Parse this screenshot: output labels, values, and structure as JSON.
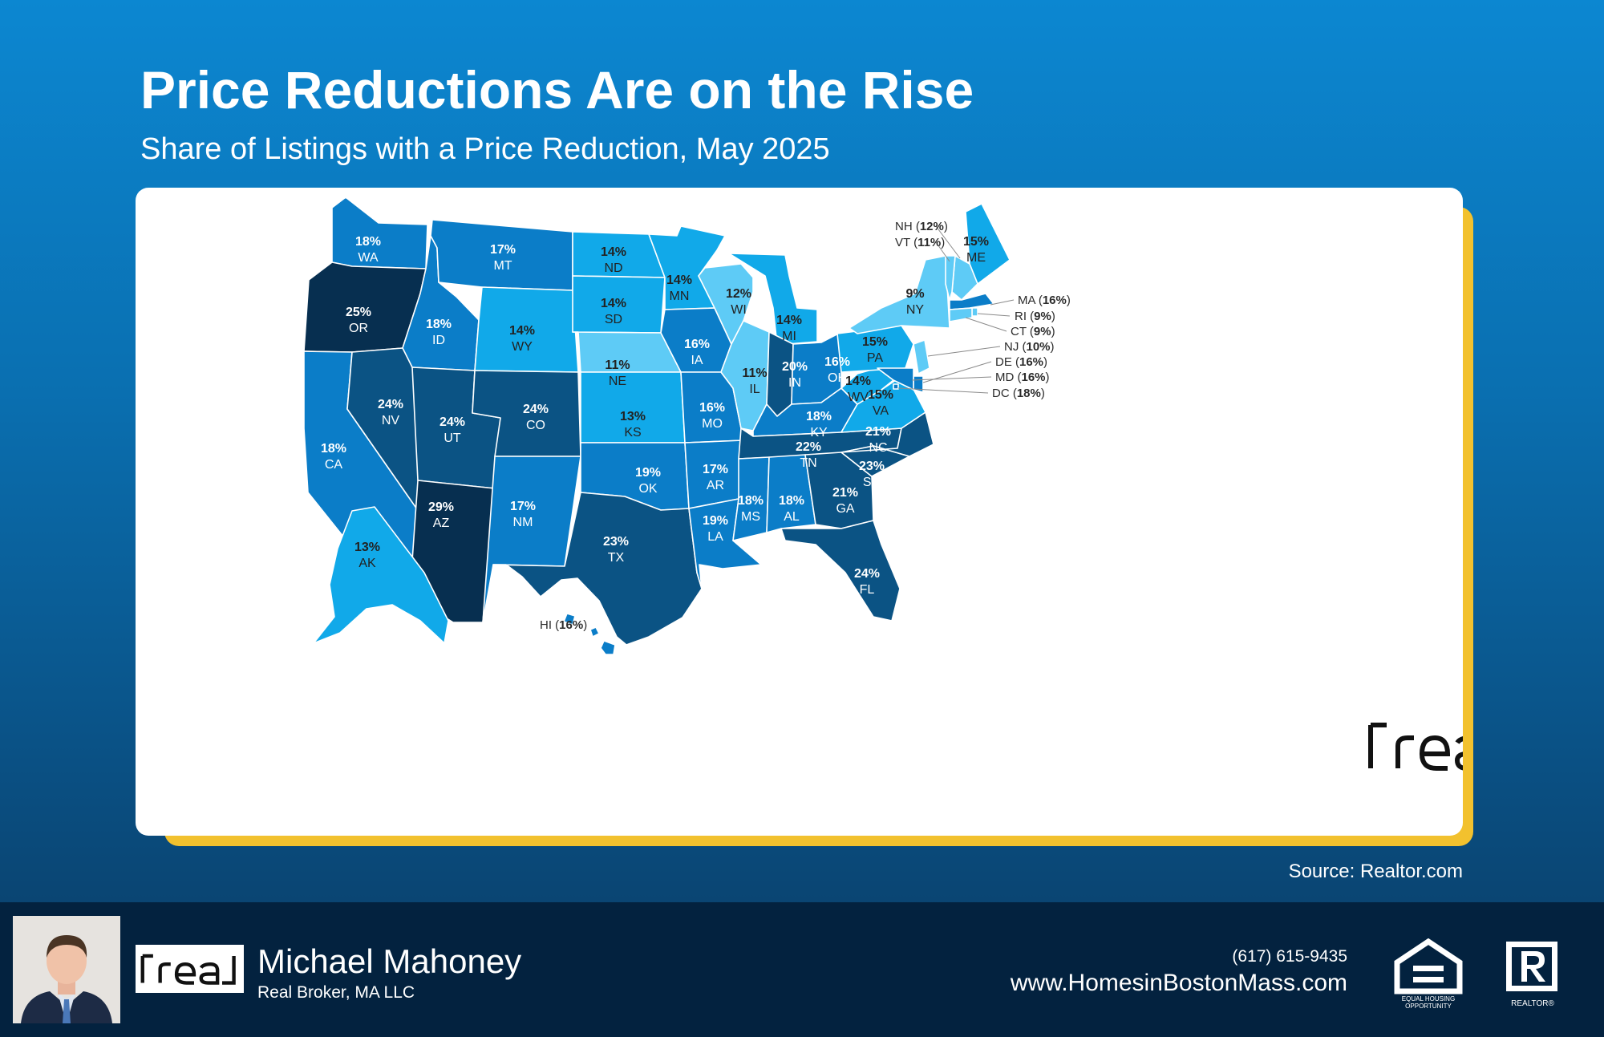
{
  "header": {
    "title": "Price Reductions Are on the Rise",
    "subtitle": "Share of Listings with a Price Reduction, May 2025"
  },
  "map": {
    "colors": {
      "c1": "#5ecbf6",
      "c2": "#11a9e9",
      "c3": "#0b7dc8",
      "c4": "#0b5384",
      "c5": "#072f50",
      "text_light": "#ffffff",
      "text_dark": "#222222"
    },
    "states": [
      {
        "abbr": "WA",
        "value": "18%"
      },
      {
        "abbr": "OR",
        "value": "25%"
      },
      {
        "abbr": "CA",
        "value": "18%"
      },
      {
        "abbr": "ID",
        "value": "18%"
      },
      {
        "abbr": "NV",
        "value": "24%"
      },
      {
        "abbr": "MT",
        "value": "17%"
      },
      {
        "abbr": "WY",
        "value": "14%"
      },
      {
        "abbr": "UT",
        "value": "24%"
      },
      {
        "abbr": "AZ",
        "value": "29%"
      },
      {
        "abbr": "CO",
        "value": "24%"
      },
      {
        "abbr": "NM",
        "value": "17%"
      },
      {
        "abbr": "ND",
        "value": "14%"
      },
      {
        "abbr": "SD",
        "value": "14%"
      },
      {
        "abbr": "NE",
        "value": "11%"
      },
      {
        "abbr": "KS",
        "value": "13%"
      },
      {
        "abbr": "OK",
        "value": "19%"
      },
      {
        "abbr": "TX",
        "value": "23%"
      },
      {
        "abbr": "MN",
        "value": "14%"
      },
      {
        "abbr": "IA",
        "value": "16%"
      },
      {
        "abbr": "MO",
        "value": "16%"
      },
      {
        "abbr": "AR",
        "value": "17%"
      },
      {
        "abbr": "LA",
        "value": "19%"
      },
      {
        "abbr": "WI",
        "value": "12%"
      },
      {
        "abbr": "IL",
        "value": "11%"
      },
      {
        "abbr": "MI",
        "value": "14%"
      },
      {
        "abbr": "IN",
        "value": "20%"
      },
      {
        "abbr": "OH",
        "value": "16%"
      },
      {
        "abbr": "KY",
        "value": "18%"
      },
      {
        "abbr": "TN",
        "value": "22%"
      },
      {
        "abbr": "MS",
        "value": "18%"
      },
      {
        "abbr": "AL",
        "value": "18%"
      },
      {
        "abbr": "GA",
        "value": "21%"
      },
      {
        "abbr": "FL",
        "value": "24%"
      },
      {
        "abbr": "SC",
        "value": "23%"
      },
      {
        "abbr": "NC",
        "value": "21%"
      },
      {
        "abbr": "VA",
        "value": "15%"
      },
      {
        "abbr": "WV",
        "value": "14%"
      },
      {
        "abbr": "PA",
        "value": "15%"
      },
      {
        "abbr": "NY",
        "value": "9%"
      },
      {
        "abbr": "ME",
        "value": "15%"
      },
      {
        "abbr": "AK",
        "value": "13%"
      }
    ],
    "callouts": [
      {
        "abbr": "NH",
        "value": "12%"
      },
      {
        "abbr": "VT",
        "value": "11%"
      },
      {
        "abbr": "MA",
        "value": "16%"
      },
      {
        "abbr": "RI",
        "value": "9%"
      },
      {
        "abbr": "CT",
        "value": "9%"
      },
      {
        "abbr": "NJ",
        "value": "10%"
      },
      {
        "abbr": "DE",
        "value": "16%"
      },
      {
        "abbr": "MD",
        "value": "16%"
      },
      {
        "abbr": "DC",
        "value": "18%"
      },
      {
        "abbr": "HI",
        "value": "16%"
      }
    ]
  },
  "brand": {
    "logo_text": "real"
  },
  "source": "Source: Realtor.com",
  "footer": {
    "agent_name": "Michael Mahoney",
    "company": "Real Broker, MA LLC",
    "phone": "(617) 615-9435",
    "website": "www.HomesinBostonMass.com",
    "equal_housing_line1": "EQUAL HOUSING",
    "equal_housing_line2": "OPPORTUNITY",
    "realtor_label": "REALTOR®"
  }
}
